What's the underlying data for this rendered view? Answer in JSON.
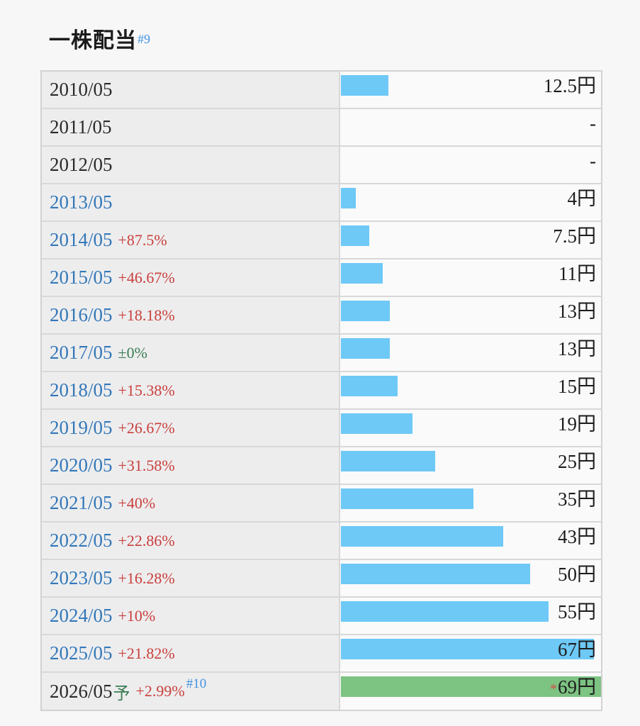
{
  "header": {
    "title": "一株配当",
    "footnote_ref": "#9"
  },
  "colors": {
    "bar_blue": "#6ec9f7",
    "bar_green": "#7dc382",
    "year_link_blue": "#3378b9",
    "change_up_red": "#c9403c",
    "change_flat_green": "#3a7d54",
    "footnote_blue": "#4193dd",
    "left_cell_bg": "#ededee",
    "right_cell_bg": "#fafafa"
  },
  "chart_data": {
    "type": "bar",
    "orientation": "horizontal",
    "title": "一株配当",
    "unit": "円",
    "max_value": 69,
    "categories": [
      "2010/05",
      "2011/05",
      "2012/05",
      "2013/05",
      "2014/05",
      "2015/05",
      "2016/05",
      "2017/05",
      "2018/05",
      "2019/05",
      "2020/05",
      "2021/05",
      "2022/05",
      "2023/05",
      "2024/05",
      "2025/05",
      "2026/05予"
    ],
    "values": [
      12.5,
      null,
      null,
      4,
      7.5,
      11,
      13,
      13,
      15,
      19,
      25,
      35,
      43,
      50,
      55,
      67,
      69
    ],
    "rows": [
      {
        "period": "2010/05",
        "is_link": false,
        "forecast_mark": "",
        "change": "",
        "change_type": "",
        "footnote_ref": "",
        "value": 12.5,
        "value_prefix": "",
        "value_label": "12.5円",
        "bar": "normal"
      },
      {
        "period": "2011/05",
        "is_link": false,
        "forecast_mark": "",
        "change": "",
        "change_type": "",
        "footnote_ref": "",
        "value": null,
        "value_prefix": "",
        "value_label": "-",
        "bar": ""
      },
      {
        "period": "2012/05",
        "is_link": false,
        "forecast_mark": "",
        "change": "",
        "change_type": "",
        "footnote_ref": "",
        "value": null,
        "value_prefix": "",
        "value_label": "-",
        "bar": ""
      },
      {
        "period": "2013/05",
        "is_link": true,
        "forecast_mark": "",
        "change": "",
        "change_type": "",
        "footnote_ref": "",
        "value": 4,
        "value_prefix": "",
        "value_label": "4円",
        "bar": "normal"
      },
      {
        "period": "2014/05",
        "is_link": true,
        "forecast_mark": "",
        "change": "+87.5%",
        "change_type": "up",
        "footnote_ref": "",
        "value": 7.5,
        "value_prefix": "",
        "value_label": "7.5円",
        "bar": "normal"
      },
      {
        "period": "2015/05",
        "is_link": true,
        "forecast_mark": "",
        "change": "+46.67%",
        "change_type": "up",
        "footnote_ref": "",
        "value": 11,
        "value_prefix": "",
        "value_label": "11円",
        "bar": "normal"
      },
      {
        "period": "2016/05",
        "is_link": true,
        "forecast_mark": "",
        "change": "+18.18%",
        "change_type": "up",
        "footnote_ref": "",
        "value": 13,
        "value_prefix": "",
        "value_label": "13円",
        "bar": "normal"
      },
      {
        "period": "2017/05",
        "is_link": true,
        "forecast_mark": "",
        "change": "±0%",
        "change_type": "flat",
        "footnote_ref": "",
        "value": 13,
        "value_prefix": "",
        "value_label": "13円",
        "bar": "normal"
      },
      {
        "period": "2018/05",
        "is_link": true,
        "forecast_mark": "",
        "change": "+15.38%",
        "change_type": "up",
        "footnote_ref": "",
        "value": 15,
        "value_prefix": "",
        "value_label": "15円",
        "bar": "normal"
      },
      {
        "period": "2019/05",
        "is_link": true,
        "forecast_mark": "",
        "change": "+26.67%",
        "change_type": "up",
        "footnote_ref": "",
        "value": 19,
        "value_prefix": "",
        "value_label": "19円",
        "bar": "normal"
      },
      {
        "period": "2020/05",
        "is_link": true,
        "forecast_mark": "",
        "change": "+31.58%",
        "change_type": "up",
        "footnote_ref": "",
        "value": 25,
        "value_prefix": "",
        "value_label": "25円",
        "bar": "normal"
      },
      {
        "period": "2021/05",
        "is_link": true,
        "forecast_mark": "",
        "change": "+40%",
        "change_type": "up",
        "footnote_ref": "",
        "value": 35,
        "value_prefix": "",
        "value_label": "35円",
        "bar": "normal"
      },
      {
        "period": "2022/05",
        "is_link": true,
        "forecast_mark": "",
        "change": "+22.86%",
        "change_type": "up",
        "footnote_ref": "",
        "value": 43,
        "value_prefix": "",
        "value_label": "43円",
        "bar": "normal"
      },
      {
        "period": "2023/05",
        "is_link": true,
        "forecast_mark": "",
        "change": "+16.28%",
        "change_type": "up",
        "footnote_ref": "",
        "value": 50,
        "value_prefix": "",
        "value_label": "50円",
        "bar": "normal"
      },
      {
        "period": "2024/05",
        "is_link": true,
        "forecast_mark": "",
        "change": "+10%",
        "change_type": "up",
        "footnote_ref": "",
        "value": 55,
        "value_prefix": "",
        "value_label": "55円",
        "bar": "normal"
      },
      {
        "period": "2025/05",
        "is_link": true,
        "forecast_mark": "",
        "change": "+21.82%",
        "change_type": "up",
        "footnote_ref": "",
        "value": 67,
        "value_prefix": "",
        "value_label": "67円",
        "bar": "normal"
      },
      {
        "period": "2026/05",
        "is_link": false,
        "forecast_mark": "予",
        "change": "+2.99%",
        "change_type": "up",
        "footnote_ref": "#10",
        "value": 69,
        "value_prefix": "*",
        "value_label": "69円",
        "bar": "forecast"
      }
    ]
  }
}
